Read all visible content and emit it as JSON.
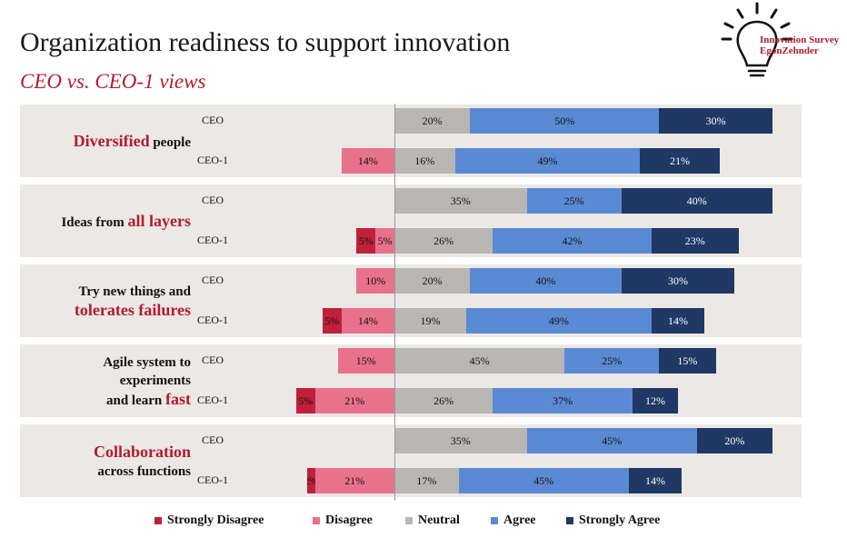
{
  "header": {
    "title": "Organization readiness to support innovation",
    "subtitle": "CEO vs. CEO-1 views"
  },
  "logo": {
    "icon": "lightbulb-icon",
    "line1": "Innovation Survey",
    "line2": "EgonZehnder"
  },
  "colors": {
    "strongly_disagree": "#c0203a",
    "disagree": "#e8718c",
    "neutral": "#b9b7b6",
    "agree": "#5a8ad4",
    "strongly_agree": "#1f3864",
    "accent": "#b01c2e",
    "panel_bg": "#ebe8e5"
  },
  "chart_data": {
    "type": "bar",
    "orientation": "horizontal-diverging",
    "title": "Organization readiness to support innovation",
    "subtitle": "CEO vs. CEO-1 views",
    "legend": [
      "Strongly Disagree",
      "Disagree",
      "Neutral",
      "Agree",
      "Strongly Agree"
    ],
    "legend_position": "bottom",
    "categories": [
      {
        "label": [
          {
            "text": "Diversified",
            "hl": true
          },
          {
            "text": " people",
            "hl": false
          }
        ],
        "rows": [
          {
            "respondent": "CEO",
            "values": [
              0,
              0,
              20,
              50,
              30
            ]
          },
          {
            "respondent": "CEO-1",
            "values": [
              0,
              14,
              16,
              49,
              21
            ]
          }
        ]
      },
      {
        "label": [
          {
            "text": "Ideas from ",
            "hl": false
          },
          {
            "text": "all layers",
            "hl": true
          }
        ],
        "rows": [
          {
            "respondent": "CEO",
            "values": [
              0,
              0,
              35,
              25,
              40
            ]
          },
          {
            "respondent": "CEO-1",
            "values": [
              5,
              5,
              26,
              42,
              23
            ]
          }
        ]
      },
      {
        "label": [
          {
            "text": "Try new things and",
            "hl": false,
            "br": true
          },
          {
            "text": "tolerates failures",
            "hl": true
          }
        ],
        "rows": [
          {
            "respondent": "CEO",
            "values": [
              0,
              10,
              20,
              40,
              30
            ]
          },
          {
            "respondent": "CEO-1",
            "values": [
              5,
              14,
              19,
              49,
              14
            ]
          }
        ]
      },
      {
        "label": [
          {
            "text": "Agile system to",
            "hl": false,
            "br": true
          },
          {
            "text": "experiments",
            "hl": false,
            "br": true
          },
          {
            "text": "and learn ",
            "hl": false
          },
          {
            "text": "fast",
            "hl": true
          }
        ],
        "rows": [
          {
            "respondent": "CEO",
            "values": [
              0,
              15,
              45,
              25,
              15
            ]
          },
          {
            "respondent": "CEO-1",
            "values": [
              5,
              21,
              26,
              37,
              12
            ]
          }
        ]
      },
      {
        "label": [
          {
            "text": "Collaboration",
            "hl": true,
            "br": true
          },
          {
            "text": "across functions",
            "hl": false
          }
        ],
        "rows": [
          {
            "respondent": "CEO",
            "values": [
              0,
              0,
              35,
              45,
              20
            ]
          },
          {
            "respondent": "CEO-1",
            "values": [
              2,
              21,
              17,
              45,
              14
            ]
          }
        ]
      }
    ]
  }
}
